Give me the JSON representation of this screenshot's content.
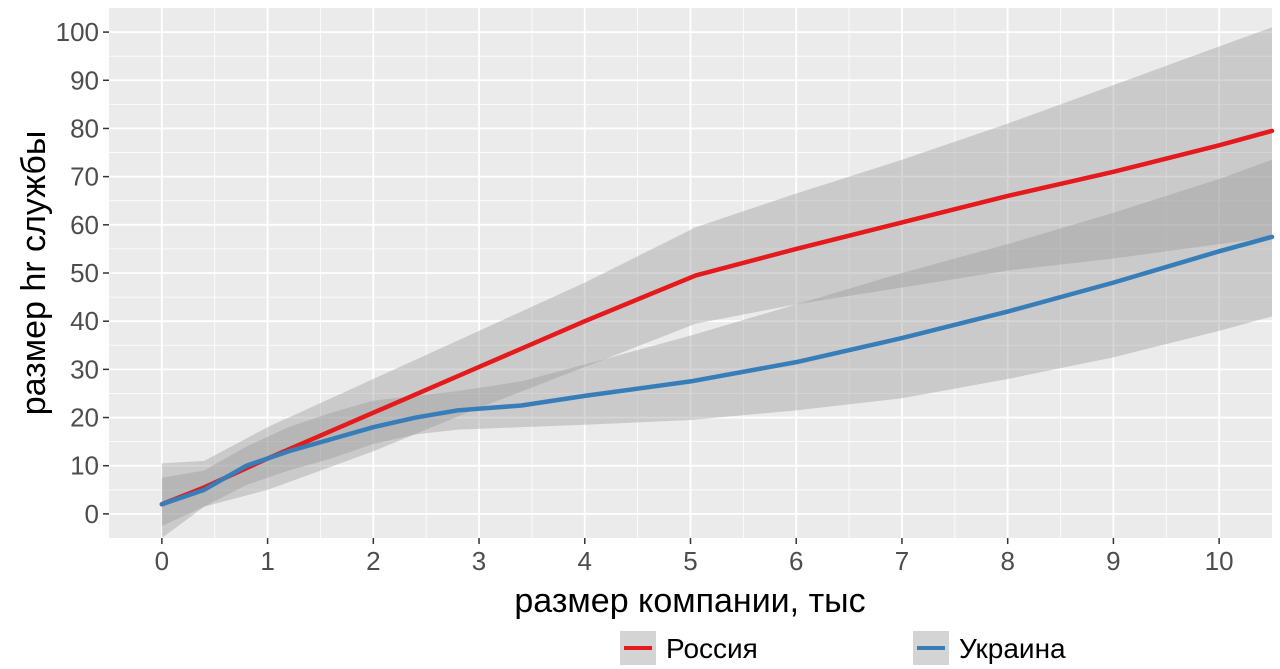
{
  "chart_data": {
    "type": "line",
    "title": "",
    "xlabel": "размер компании, тыс",
    "ylabel": "размер hr службы",
    "xlim": [
      -0.5,
      10.5
    ],
    "ylim": [
      -5,
      105
    ],
    "x_ticks": [
      0,
      1,
      2,
      3,
      4,
      5,
      6,
      7,
      8,
      9,
      10
    ],
    "y_ticks": [
      0,
      10,
      20,
      30,
      40,
      50,
      60,
      70,
      80,
      90,
      100
    ],
    "grid": true,
    "legend_position": "bottom",
    "series": [
      {
        "name": "Россия",
        "color": "#e41a1c",
        "x": [
          0,
          0.4,
          1,
          2,
          3,
          4,
          5.05,
          6,
          7,
          8,
          9,
          10,
          10.5
        ],
        "y": [
          2,
          5.5,
          11.5,
          21,
          30.5,
          40,
          49.5,
          55,
          60.5,
          66,
          71,
          76.5,
          79.5
        ],
        "lower": [
          -2.5,
          1.5,
          5,
          13,
          22,
          30.5,
          39.5,
          43.5,
          47,
          50.5,
          53,
          56,
          57.5
        ],
        "upper": [
          10.5,
          11,
          18,
          28,
          38,
          48,
          59.5,
          66.5,
          73.5,
          81,
          89,
          97,
          101
        ]
      },
      {
        "name": "Украина",
        "color": "#377eb8",
        "x": [
          0,
          0.4,
          0.8,
          1.2,
          1.6,
          2,
          2.4,
          2.8,
          3.4,
          4,
          5,
          6,
          7,
          8,
          9,
          10,
          10.5
        ],
        "y": [
          2,
          5,
          10,
          13,
          15.5,
          18,
          20,
          21.5,
          22.5,
          24.5,
          27.5,
          31.5,
          36.5,
          42,
          48,
          54.5,
          57.5
        ],
        "lower": [
          -5,
          1.5,
          6,
          9,
          11.5,
          14.5,
          16.5,
          17.5,
          18,
          18.5,
          19.5,
          21.5,
          24,
          28,
          32.5,
          38,
          41
        ],
        "upper": [
          7.5,
          9,
          14,
          18,
          21,
          23.5,
          24.5,
          25.5,
          27.5,
          31,
          37,
          43.5,
          50,
          56,
          62.5,
          69.5,
          73.5
        ]
      }
    ]
  }
}
